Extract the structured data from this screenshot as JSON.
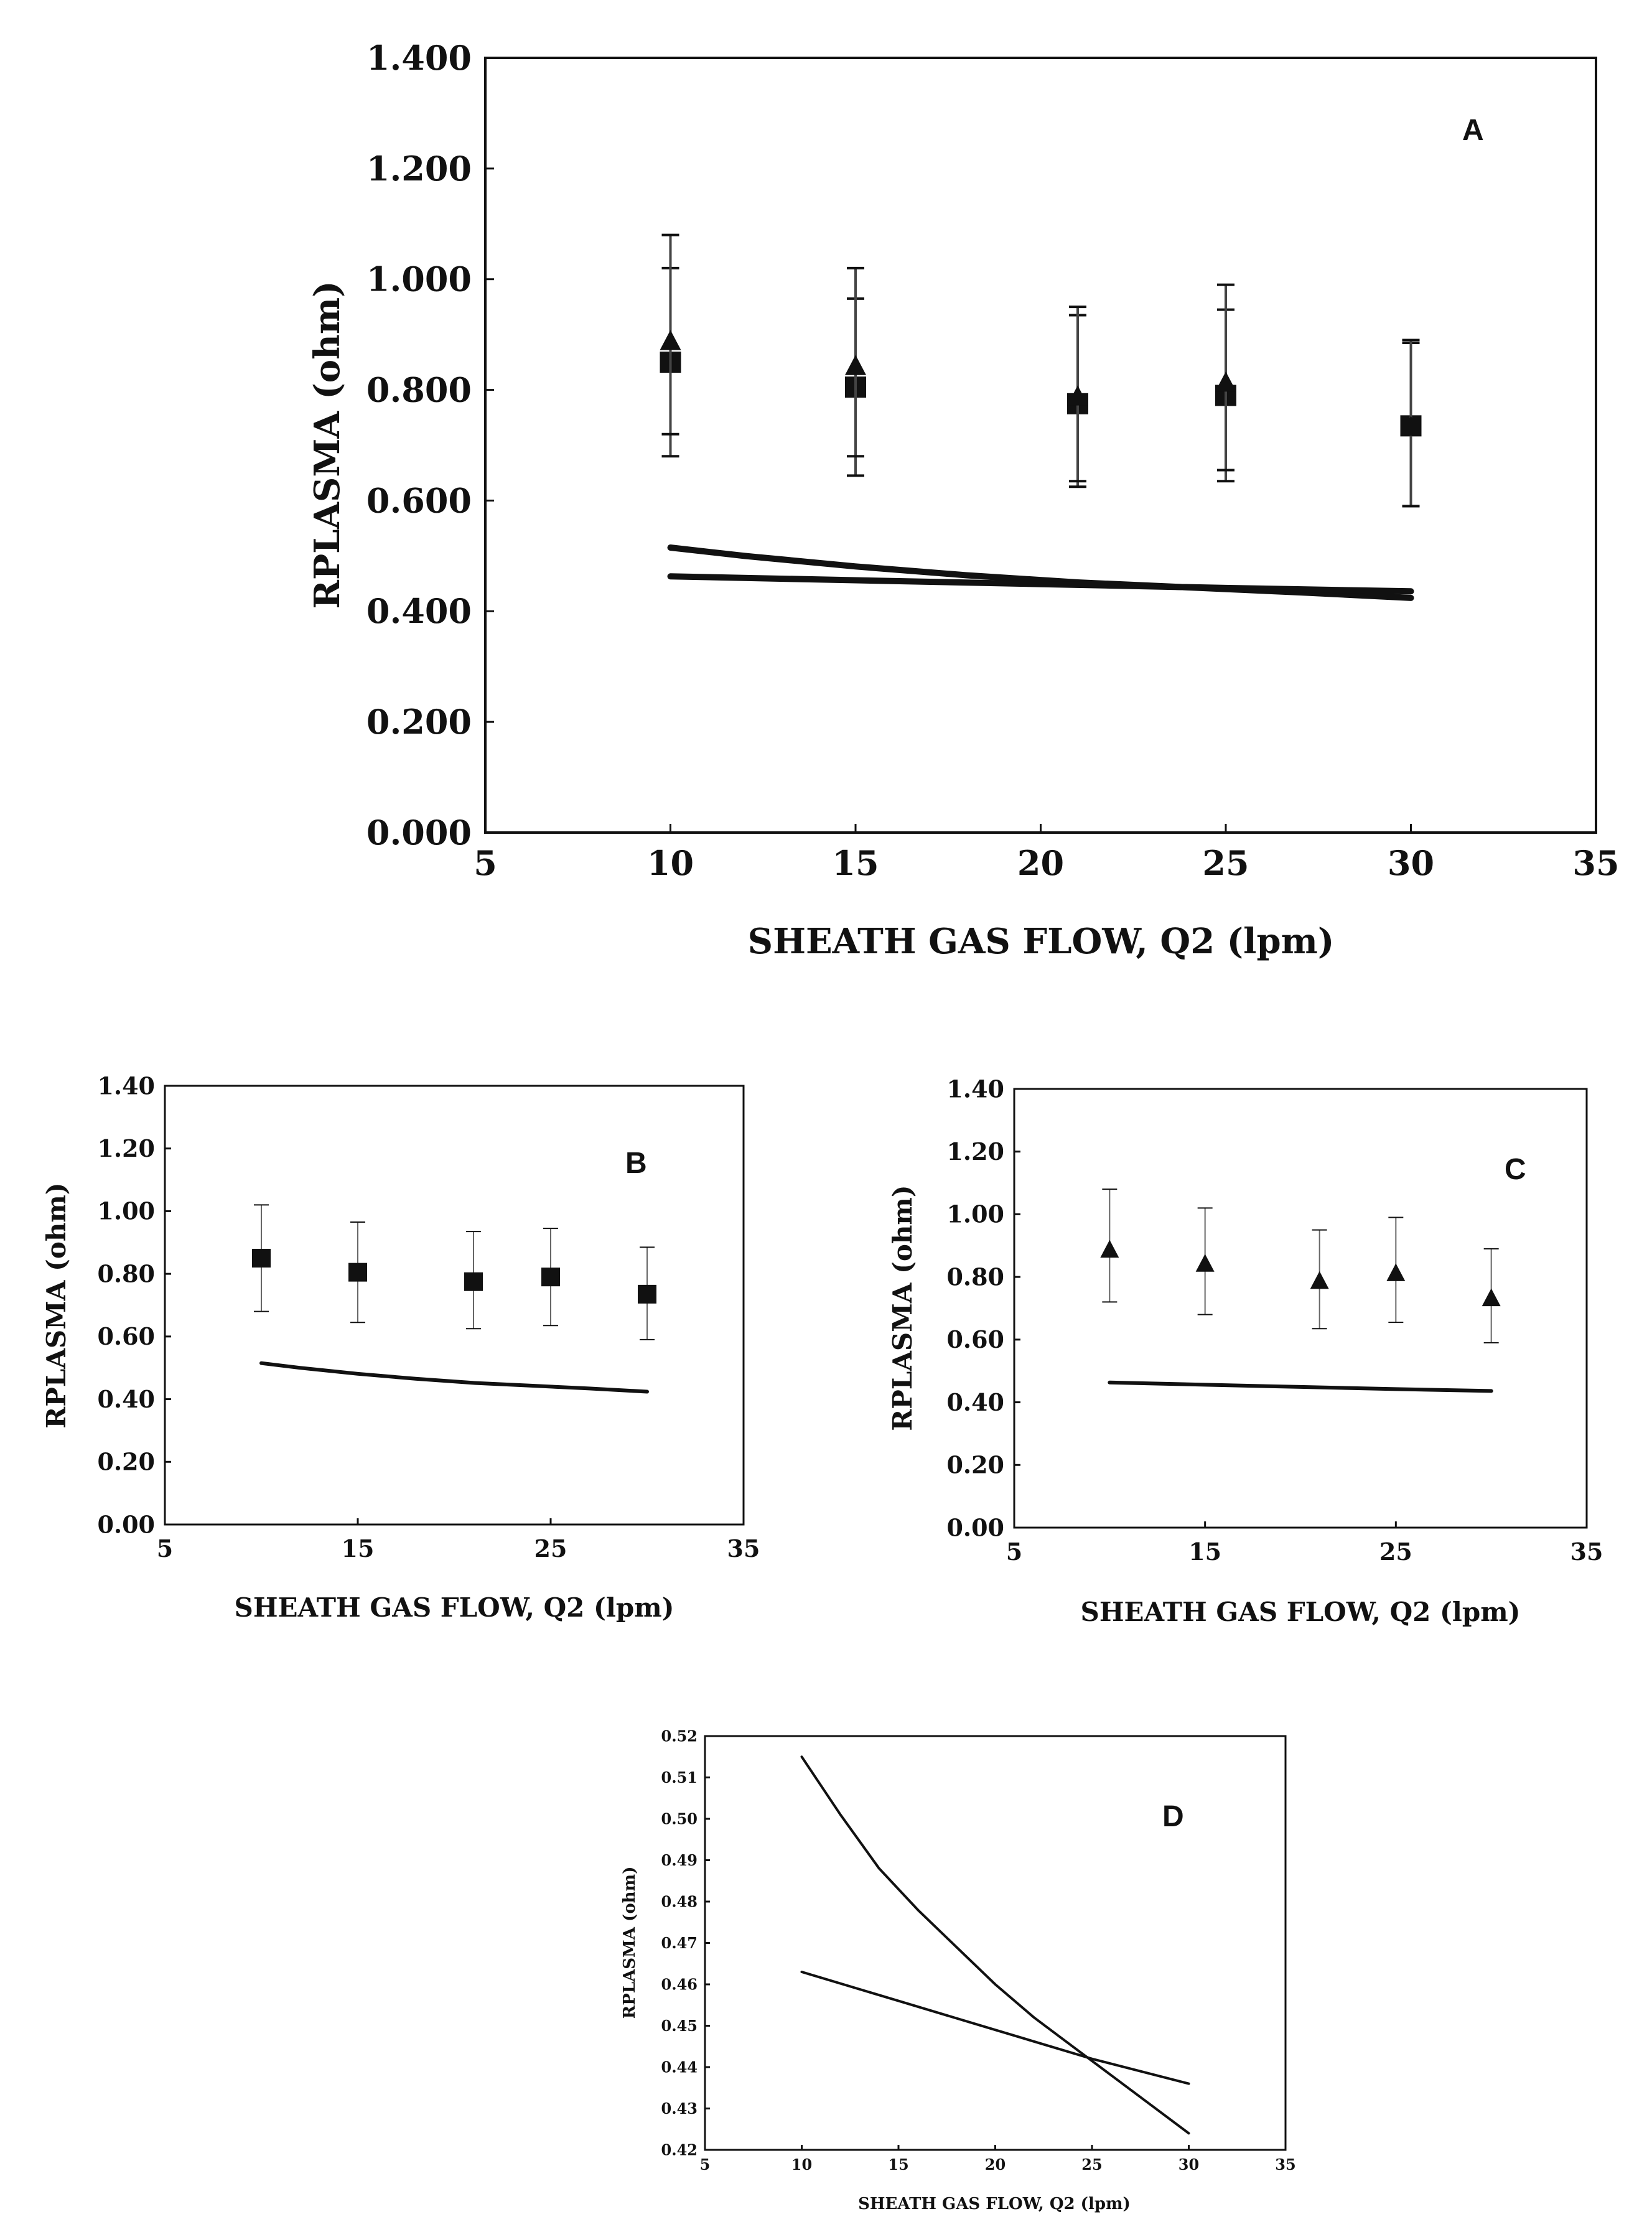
{
  "chart_data": [
    {
      "panel": "A",
      "type": "scatter",
      "xlabel": "SHEATH  GAS FLOW, Q2 (lpm)",
      "ylabel": "RPLASMA (ohm)",
      "xlim": [
        5,
        35
      ],
      "ylim": [
        0,
        1.4
      ],
      "xticks": [
        5,
        10,
        15,
        20,
        25,
        30,
        35
      ],
      "xtick_labels": [
        "5",
        "10",
        "15",
        "20",
        "25",
        "30",
        "35"
      ],
      "yticks": [
        0,
        0.2,
        0.4,
        0.6,
        0.8,
        1.0,
        1.2,
        1.4
      ],
      "ytick_labels": [
        "0.000",
        "0.200",
        "0.400",
        "0.600",
        "0.800",
        "1.000",
        "1.200",
        "1.400"
      ],
      "series": [
        {
          "name": "square markers",
          "marker": "square",
          "x": [
            10,
            15,
            21,
            25,
            30
          ],
          "y": [
            0.85,
            0.805,
            0.775,
            0.79,
            0.735
          ],
          "err_low": [
            0.68,
            0.645,
            0.625,
            0.635,
            0.59
          ],
          "err_high": [
            1.02,
            0.965,
            0.935,
            0.945,
            0.885
          ]
        },
        {
          "name": "triangle markers",
          "marker": "triangle",
          "x": [
            10,
            15,
            21,
            25,
            30
          ],
          "y": [
            0.89,
            0.845,
            0.79,
            0.815,
            0.735
          ],
          "err_low": [
            0.72,
            0.68,
            0.635,
            0.655,
            0.59
          ],
          "err_high": [
            1.08,
            1.02,
            0.95,
            0.99,
            0.89
          ]
        },
        {
          "name": "model curve 1",
          "marker": "line",
          "x": [
            10,
            12,
            15,
            18,
            21,
            24,
            27,
            30
          ],
          "y": [
            0.515,
            0.5,
            0.481,
            0.465,
            0.452,
            0.443,
            0.434,
            0.424
          ]
        },
        {
          "name": "model curve 2",
          "marker": "line",
          "x": [
            10,
            15,
            20,
            25,
            30
          ],
          "y": [
            0.463,
            0.456,
            0.449,
            0.442,
            0.436
          ]
        }
      ]
    },
    {
      "panel": "B",
      "type": "scatter",
      "xlabel": "SHEATH  GAS FLOW, Q2 (lpm)",
      "ylabel": "RPLASMA (ohm)",
      "xlim": [
        5,
        35
      ],
      "ylim": [
        0,
        1.4
      ],
      "xticks": [
        5,
        15,
        25,
        35
      ],
      "xtick_labels": [
        "5",
        "15",
        "25",
        "35"
      ],
      "yticks": [
        0,
        0.2,
        0.4,
        0.6,
        0.8,
        1.0,
        1.2,
        1.4
      ],
      "ytick_labels": [
        "0.00",
        "0.20",
        "0.40",
        "0.60",
        "0.80",
        "1.00",
        "1.20",
        "1.40"
      ],
      "series": [
        {
          "name": "square markers",
          "marker": "square",
          "x": [
            10,
            15,
            21,
            25,
            30
          ],
          "y": [
            0.85,
            0.805,
            0.775,
            0.79,
            0.735
          ],
          "err_low": [
            0.68,
            0.645,
            0.625,
            0.635,
            0.59
          ],
          "err_high": [
            1.02,
            0.965,
            0.935,
            0.945,
            0.885
          ]
        },
        {
          "name": "model curve 1",
          "marker": "line",
          "x": [
            10,
            12,
            15,
            18,
            21,
            24,
            27,
            30
          ],
          "y": [
            0.515,
            0.5,
            0.481,
            0.465,
            0.452,
            0.443,
            0.434,
            0.424
          ]
        }
      ]
    },
    {
      "panel": "C",
      "type": "scatter",
      "xlabel": "SHEATH  GAS FLOW, Q2 (lpm)",
      "ylabel": "RPLASMA (ohm)",
      "xlim": [
        5,
        35
      ],
      "ylim": [
        0,
        1.4
      ],
      "xticks": [
        5,
        15,
        25,
        35
      ],
      "xtick_labels": [
        "5",
        "15",
        "25",
        "35"
      ],
      "yticks": [
        0,
        0.2,
        0.4,
        0.6,
        0.8,
        1.0,
        1.2,
        1.4
      ],
      "ytick_labels": [
        "0.00",
        "0.20",
        "0.40",
        "0.60",
        "0.80",
        "1.00",
        "1.20",
        "1.40"
      ],
      "series": [
        {
          "name": "triangle markers",
          "marker": "triangle",
          "x": [
            10,
            15,
            21,
            25,
            30
          ],
          "y": [
            0.89,
            0.845,
            0.79,
            0.815,
            0.735
          ],
          "err_low": [
            0.72,
            0.68,
            0.635,
            0.655,
            0.59
          ],
          "err_high": [
            1.08,
            1.02,
            0.95,
            0.99,
            0.89
          ]
        },
        {
          "name": "model curve 2",
          "marker": "line",
          "x": [
            10,
            15,
            20,
            25,
            30
          ],
          "y": [
            0.463,
            0.456,
            0.449,
            0.442,
            0.436
          ]
        }
      ]
    },
    {
      "panel": "D",
      "type": "line",
      "xlabel": "SHEATH  GAS FLOW, Q2 (lpm)",
      "ylabel": "RPLASMA (ohm)",
      "xlim": [
        5,
        35
      ],
      "ylim": [
        0.42,
        0.52
      ],
      "xticks": [
        5,
        10,
        15,
        20,
        25,
        30,
        35
      ],
      "xtick_labels": [
        "5",
        "10",
        "15",
        "20",
        "25",
        "30",
        "35"
      ],
      "yticks": [
        0.42,
        0.43,
        0.44,
        0.45,
        0.46,
        0.47,
        0.48,
        0.49,
        0.5,
        0.51,
        0.52
      ],
      "ytick_labels": [
        "0.42",
        "0.43",
        "0.44",
        "0.45",
        "0.46",
        "0.47",
        "0.48",
        "0.49",
        "0.50",
        "0.51",
        "0.52"
      ],
      "series": [
        {
          "name": "model curve 1",
          "marker": "line",
          "x": [
            10,
            12,
            14,
            16,
            18,
            20,
            22,
            24,
            26,
            28,
            30
          ],
          "y": [
            0.515,
            0.501,
            0.488,
            0.478,
            0.469,
            0.46,
            0.452,
            0.445,
            0.438,
            0.431,
            0.424
          ]
        },
        {
          "name": "model curve 2",
          "marker": "line",
          "x": [
            10,
            15,
            20,
            25,
            30
          ],
          "y": [
            0.463,
            0.456,
            0.449,
            0.442,
            0.436
          ]
        }
      ]
    }
  ]
}
